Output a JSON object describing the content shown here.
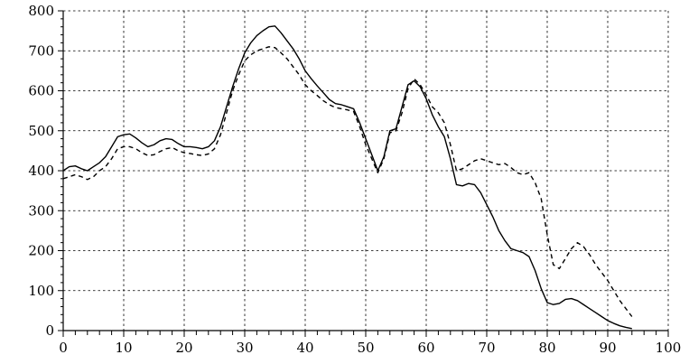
{
  "chart_data": {
    "type": "line",
    "title": "",
    "xlabel": "",
    "ylabel": "",
    "xlim": [
      0,
      100
    ],
    "ylim": [
      0,
      800
    ],
    "x_ticks": [
      "0",
      "10",
      "20",
      "30",
      "40",
      "50",
      "60",
      "70",
      "80",
      "90",
      "100"
    ],
    "y_ticks": [
      "0",
      "100",
      "200",
      "300",
      "400",
      "500",
      "600",
      "700",
      "800"
    ],
    "grid": true,
    "series": [
      {
        "style": "solid",
        "x": [
          0,
          1,
          2,
          3,
          4,
          5,
          6,
          7,
          8,
          9,
          10,
          11,
          12,
          13,
          14,
          15,
          16,
          17,
          18,
          19,
          20,
          21,
          22,
          23,
          24,
          25,
          26,
          27,
          28,
          29,
          30,
          31,
          32,
          33,
          34,
          35,
          36,
          37,
          38,
          39,
          40,
          41,
          42,
          43,
          44,
          45,
          46,
          47,
          48,
          49,
          50,
          51,
          52,
          53,
          54,
          55,
          56,
          57,
          58,
          59,
          60,
          61,
          62,
          63,
          64,
          65,
          66,
          67,
          68,
          69,
          70,
          71,
          72,
          73,
          74,
          75,
          76,
          77,
          78,
          79,
          80,
          81,
          82,
          83,
          84,
          85,
          86,
          87,
          88,
          89,
          90,
          91,
          92,
          93,
          94
        ],
        "values": [
          400,
          410,
          412,
          405,
          400,
          410,
          420,
          435,
          460,
          485,
          490,
          492,
          482,
          470,
          460,
          465,
          475,
          480,
          478,
          468,
          460,
          460,
          458,
          455,
          460,
          475,
          510,
          560,
          610,
          655,
          695,
          720,
          738,
          750,
          760,
          762,
          745,
          725,
          705,
          680,
          650,
          630,
          612,
          595,
          578,
          568,
          565,
          560,
          555,
          520,
          480,
          440,
          400,
          435,
          500,
          505,
          560,
          615,
          625,
          610,
          580,
          540,
          510,
          485,
          430,
          365,
          362,
          368,
          365,
          345,
          315,
          285,
          250,
          225,
          205,
          200,
          195,
          185,
          150,
          105,
          70,
          65,
          68,
          78,
          80,
          75,
          65,
          55,
          45,
          35,
          25,
          18,
          12,
          8,
          5
        ]
      },
      {
        "style": "dashed",
        "x": [
          0,
          1,
          2,
          3,
          4,
          5,
          6,
          7,
          8,
          9,
          10,
          11,
          12,
          13,
          14,
          15,
          16,
          17,
          18,
          19,
          20,
          21,
          22,
          23,
          24,
          25,
          26,
          27,
          28,
          29,
          30,
          31,
          32,
          33,
          34,
          35,
          36,
          37,
          38,
          39,
          40,
          41,
          42,
          43,
          44,
          45,
          46,
          47,
          48,
          49,
          50,
          51,
          52,
          53,
          54,
          55,
          56,
          57,
          58,
          59,
          60,
          61,
          62,
          63,
          64,
          65,
          66,
          67,
          68,
          69,
          70,
          71,
          72,
          73,
          74,
          75,
          76,
          77,
          78,
          79,
          80,
          81,
          82,
          83,
          84,
          85,
          86,
          87,
          88,
          89,
          90,
          91,
          92,
          93,
          94
        ],
        "values": [
          380,
          385,
          390,
          385,
          378,
          385,
          400,
          410,
          430,
          455,
          460,
          460,
          455,
          445,
          438,
          440,
          448,
          455,
          458,
          450,
          445,
          443,
          440,
          438,
          442,
          455,
          490,
          545,
          600,
          640,
          675,
          690,
          700,
          705,
          710,
          708,
          695,
          680,
          660,
          640,
          615,
          600,
          588,
          575,
          565,
          558,
          555,
          552,
          548,
          510,
          465,
          430,
          395,
          430,
          495,
          500,
          545,
          605,
          630,
          615,
          590,
          560,
          545,
          520,
          465,
          400,
          405,
          415,
          425,
          430,
          425,
          420,
          415,
          418,
          408,
          395,
          390,
          395,
          370,
          330,
          240,
          165,
          155,
          180,
          205,
          220,
          210,
          190,
          165,
          145,
          125,
          100,
          75,
          55,
          35
        ]
      }
    ]
  }
}
